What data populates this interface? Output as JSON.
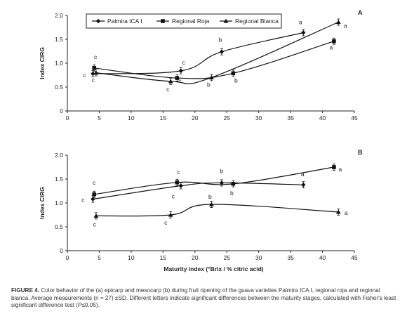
{
  "chart_data": [
    {
      "type": "line",
      "panel_label": "A",
      "ylabel": "Index CIRG",
      "xlabel": "",
      "xlim": [
        0,
        45
      ],
      "ylim": [
        0,
        2.0
      ],
      "xticks": [
        "0",
        "5",
        "10",
        "15",
        "20",
        "25",
        "30",
        "35",
        "40",
        "45"
      ],
      "yticks": [
        "0",
        "0.5",
        "1.0",
        "1.5",
        "2.0"
      ],
      "legend": {
        "placement": "top-left",
        "boxed": true
      },
      "series": [
        {
          "name": "Palmira ICA I",
          "marker": "diamond",
          "x": [
            4.0,
            17.8,
            24.2,
            37.0
          ],
          "y": [
            0.78,
            0.84,
            1.24,
            1.64
          ],
          "letters": [
            "c",
            "c",
            "b",
            "a"
          ]
        },
        {
          "name": "Regional Roja",
          "marker": "square",
          "x": [
            4.2,
            17.2,
            26.0,
            41.8
          ],
          "y": [
            0.9,
            0.69,
            0.79,
            1.46
          ],
          "letters": [
            "c",
            "c",
            "b",
            "a"
          ]
        },
        {
          "name": "Regional Blanca",
          "marker": "triangle",
          "x": [
            4.5,
            16.2,
            22.6,
            42.5
          ],
          "y": [
            0.8,
            0.62,
            0.7,
            1.86
          ],
          "letters": [
            "c",
            "c",
            "b",
            "a"
          ]
        }
      ]
    },
    {
      "type": "line",
      "panel_label": "B",
      "ylabel": "Index CIRG",
      "xlabel": "Maturity index (°Brix / % citric acid)",
      "xlim": [
        0,
        45
      ],
      "ylim": [
        0,
        2.0
      ],
      "xticks": [
        "0",
        "5",
        "10",
        "15",
        "20",
        "25",
        "30",
        "35",
        "40",
        "45"
      ],
      "yticks": [
        "0",
        "0.5",
        "1.0",
        "1.5",
        "2.0"
      ],
      "series": [
        {
          "name": "Palmira ICA I",
          "marker": "diamond",
          "x": [
            4.0,
            17.8,
            24.2,
            37.0
          ],
          "y": [
            1.08,
            1.36,
            1.42,
            1.38
          ],
          "letters": [
            "c",
            "c",
            "b",
            "a"
          ]
        },
        {
          "name": "Regional Roja",
          "marker": "square",
          "x": [
            4.2,
            17.2,
            26.0,
            41.8
          ],
          "y": [
            1.18,
            1.43,
            1.4,
            1.75
          ],
          "letters": [
            "c",
            "c",
            "b",
            "a"
          ]
        },
        {
          "name": "Regional Blanca",
          "marker": "triangle",
          "x": [
            4.5,
            16.2,
            22.6,
            42.5
          ],
          "y": [
            0.73,
            0.75,
            0.97,
            0.81
          ],
          "letters": [
            "c",
            "c",
            "b",
            "a"
          ]
        }
      ]
    }
  ],
  "caption": {
    "label": "FIGURE 4.",
    "text_1": " Color behavior of the (a) epicarp and mesocarp (b) during fruit ripening of the guava varieties Palmira ICA I, regional roja and regional blanca. Average measurements (n = 27) ±",
    "sd": "SD",
    "text_2": ". Different letters indicate significant differences between the maturity stages, calculated with Fisher's least significant difference test (",
    "p": "P",
    "text_3": "≤0.05)."
  }
}
